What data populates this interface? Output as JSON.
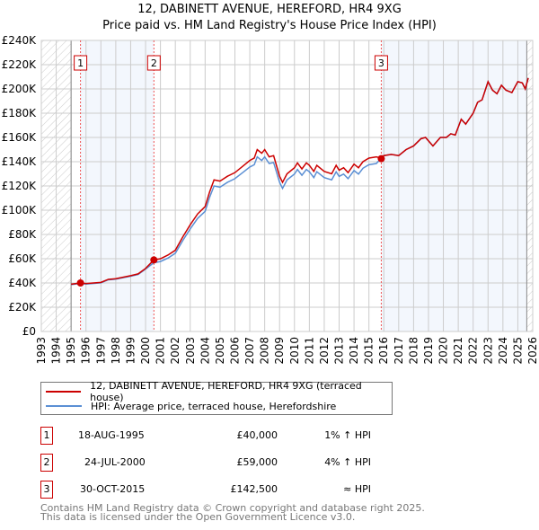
{
  "chart_data": {
    "type": "line",
    "title": "12, DABINETT AVENUE, HEREFORD, HR4 9XG",
    "subtitle": "Price paid vs. HM Land Registry's House Price Index (HPI)",
    "xlim": [
      1993,
      2026
    ],
    "ylim": [
      0,
      240000
    ],
    "yticks": [
      "£0",
      "£20K",
      "£40K",
      "£60K",
      "£80K",
      "£100K",
      "£120K",
      "£140K",
      "£160K",
      "£180K",
      "£200K",
      "£220K",
      "£240K"
    ],
    "xticks": [
      "1993",
      "1994",
      "1995",
      "1996",
      "1997",
      "1998",
      "1999",
      "2000",
      "2001",
      "2002",
      "2003",
      "2004",
      "2005",
      "2006",
      "2007",
      "2008",
      "2009",
      "2010",
      "2011",
      "2012",
      "2013",
      "2014",
      "2015",
      "2016",
      "2017",
      "2018",
      "2019",
      "2020",
      "2021",
      "2022",
      "2023",
      "2024",
      "2025",
      "2026"
    ],
    "x": [
      1995.0,
      1995.63,
      1996,
      1997,
      1997.5,
      1998,
      1999,
      1999.5,
      2000,
      2000.56,
      2001,
      2001.5,
      2002,
      2002.5,
      2003,
      2003.5,
      2004,
      2004.3,
      2004.6,
      2005,
      2005.5,
      2006,
      2006.5,
      2007,
      2007.3,
      2007.5,
      2007.8,
      2008,
      2008.3,
      2008.6,
      2009,
      2009.2,
      2009.5,
      2010,
      2010.2,
      2010.5,
      2010.8,
      2011,
      2011.3,
      2011.5,
      2012,
      2012.5,
      2012.8,
      2013,
      2013.3,
      2013.6,
      2014,
      2014.3,
      2014.6,
      2015,
      2015.5,
      2015.83,
      2016,
      2016.5,
      2017,
      2017.5,
      2018,
      2018.5,
      2018.8,
      2019.3,
      2019.8,
      2020.2,
      2020.5,
      2020.8,
      2021.2,
      2021.5,
      2022,
      2022.3,
      2022.6,
      2023,
      2023.3,
      2023.6,
      2023.9,
      2024.2,
      2024.6,
      2025,
      2025.3,
      2025.5,
      2025.7
    ],
    "series": [
      {
        "name": "12, DABINETT AVENUE, HEREFORD, HR4 9XG (terraced house)",
        "color": "#cc0000",
        "values": [
          39000,
          40000,
          39500,
          40500,
          43000,
          43500,
          46000,
          47500,
          52000,
          59000,
          60000,
          63000,
          67000,
          78000,
          88000,
          97000,
          103000,
          115000,
          125000,
          124000,
          128000,
          131000,
          136000,
          141000,
          143000,
          150000,
          147000,
          150000,
          144000,
          145000,
          128000,
          123000,
          130000,
          135000,
          139000,
          134000,
          139000,
          137000,
          132000,
          137000,
          132000,
          130000,
          137000,
          133000,
          135000,
          131000,
          138000,
          135000,
          140000,
          143000,
          144000,
          143000,
          145000,
          146000,
          145000,
          150000,
          153000,
          159000,
          160000,
          153000,
          160000,
          160000,
          163000,
          162000,
          175000,
          171000,
          180000,
          189000,
          191000,
          206000,
          199000,
          196000,
          203000,
          199000,
          197000,
          206000,
          205000,
          200000,
          209000
        ]
      },
      {
        "name": "HPI: Average price, terraced house, Herefordshire",
        "color": "#5b8fd4",
        "values": [
          38600,
          39600,
          39100,
          40100,
          42600,
          43100,
          45500,
          47000,
          51500,
          56700,
          57700,
          60500,
          64500,
          75000,
          84600,
          93300,
          99000,
          110600,
          120000,
          119000,
          123000,
          126000,
          130800,
          135600,
          137500,
          144000,
          141000,
          144000,
          138500,
          139300,
          123000,
          118000,
          125000,
          129800,
          133600,
          128800,
          133600,
          131700,
          126900,
          131700,
          126900,
          125000,
          131700,
          127900,
          129800,
          126000,
          132700,
          129800,
          134600,
          137500,
          138500,
          143000,
          145000,
          146000,
          145000,
          150000,
          153000,
          159000,
          160000,
          153000,
          160000,
          160000,
          163000,
          162000,
          175000,
          171000,
          180000,
          189000,
          191000,
          206000,
          199000,
          196000,
          203000,
          199000,
          197000,
          206000,
          205000,
          200000,
          209000
        ]
      }
    ],
    "sales": [
      {
        "label": "1",
        "x": 1995.63,
        "y": 40000
      },
      {
        "label": "2",
        "x": 2000.56,
        "y": 59000
      },
      {
        "label": "3",
        "x": 2015.83,
        "y": 142500
      }
    ],
    "legend": "below"
  },
  "title": "12, DABINETT AVENUE, HEREFORD, HR4 9XG",
  "subtitle": "Price paid vs. HM Land Registry's House Price Index (HPI)",
  "legend": [
    "12, DABINETT AVENUE, HEREFORD, HR4 9XG (terraced house)",
    "HPI: Average price, terraced house, Herefordshire"
  ],
  "table": [
    {
      "n": "1",
      "date": "18-AUG-1995",
      "price": "£40,000",
      "hpi": "1% ↑ HPI"
    },
    {
      "n": "2",
      "date": "24-JUL-2000",
      "price": "£59,000",
      "hpi": "4% ↑ HPI"
    },
    {
      "n": "3",
      "date": "30-OCT-2015",
      "price": "£142,500",
      "hpi": "≈ HPI"
    }
  ],
  "footer": [
    "Contains HM Land Registry data © Crown copyright and database right 2025.",
    "This data is licensed under the Open Government Licence v3.0."
  ]
}
